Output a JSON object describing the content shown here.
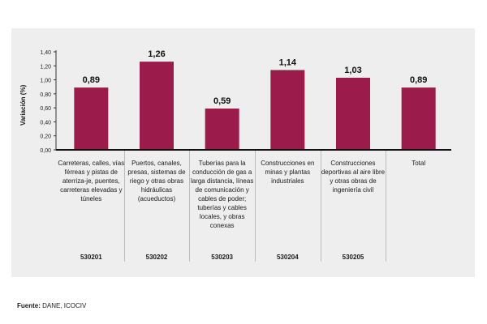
{
  "chart_data": {
    "type": "bar",
    "ylabel": "Variación (%)",
    "ylim": [
      0,
      1.4
    ],
    "yticks": [
      "0,00",
      "0,20",
      "0,40",
      "0,60",
      "0,80",
      "1,00",
      "1,20",
      "1,40"
    ],
    "grid": false,
    "bar_color": "#9b1c4a",
    "categories": [
      "Carreteras, calles, vías férreas y pistas de aterriza-je, puentes, carreteras elevadas y túneles",
      "Puertos, canales, presas, sistemas de riego y otras obras hidráulicas (acueductos)",
      "Tuberías para la conducción de gas a larga distancia, líneas de comunicación y cables de poder; tuberías y cables locales, y obras conexas",
      "Construcciones en minas y plantas industriales",
      "Construcciones deportivas al aire libre y otras obras de ingeniería civil",
      "Total"
    ],
    "codes": [
      "530201",
      "530202",
      "530203",
      "530204",
      "530205",
      ""
    ],
    "values": [
      0.89,
      1.26,
      0.59,
      1.14,
      1.03,
      0.89
    ],
    "data_labels": [
      "0,89",
      "1,26",
      "0,59",
      "1,14",
      "1,03",
      "0,89"
    ]
  },
  "source": {
    "label": "Fuente:",
    "text": "DANE, ICOCIV"
  }
}
